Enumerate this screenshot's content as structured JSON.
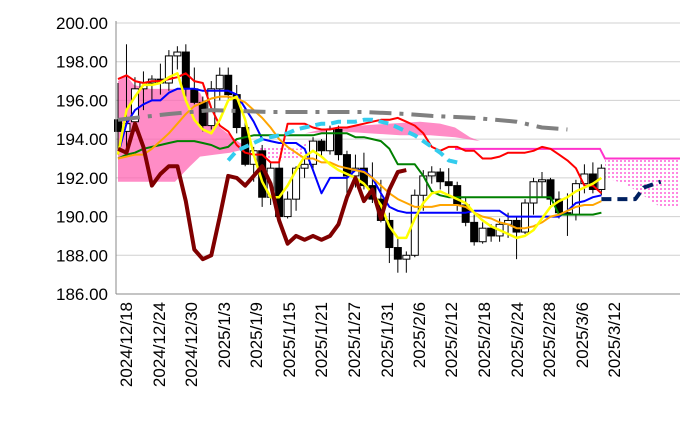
{
  "chart_data": {
    "type": "candlestick",
    "title": "",
    "xlabel": "",
    "ylabel": "",
    "ylim": [
      186.0,
      200.0
    ],
    "y_ticks": [
      "186.00",
      "188.00",
      "190.00",
      "192.00",
      "194.00",
      "196.00",
      "198.00",
      "200.00"
    ],
    "x_tick_labels": [
      "2024/12/18",
      "2024/12/24",
      "2024/12/30",
      "2025/1/3",
      "2025/1/9",
      "2025/1/15",
      "2025/1/21",
      "2025/1/27",
      "2025/1/31",
      "2025/2/6",
      "2025/2/12",
      "2025/2/18",
      "2025/2/24",
      "2025/2/28",
      "2025/3/6",
      "2025/3/12"
    ],
    "grid": "horizontal",
    "candles_ohlc": [
      [
        195.0,
        196.9,
        193.3,
        194.4
      ],
      [
        194.4,
        198.9,
        193.5,
        194.8
      ],
      [
        194.9,
        197.2,
        194.4,
        196.6
      ],
      [
        196.6,
        197.5,
        195.5,
        196.9
      ],
      [
        196.9,
        197.3,
        196.0,
        197.1
      ],
      [
        197.1,
        197.9,
        196.3,
        196.9
      ],
      [
        196.9,
        198.6,
        196.5,
        198.3
      ],
      [
        198.3,
        198.8,
        197.6,
        198.5
      ],
      [
        198.5,
        198.9,
        196.2,
        196.6
      ],
      [
        196.6,
        197.7,
        195.8,
        195.9
      ],
      [
        195.9,
        196.2,
        194.4,
        194.7
      ],
      [
        194.7,
        197.0,
        194.5,
        196.6
      ],
      [
        196.6,
        197.7,
        196.0,
        197.3
      ],
      [
        197.3,
        197.7,
        196.1,
        196.3
      ],
      [
        196.3,
        196.8,
        194.3,
        194.6
      ],
      [
        194.6,
        195.1,
        192.6,
        192.7
      ],
      [
        192.7,
        193.6,
        191.8,
        193.4
      ],
      [
        193.4,
        193.7,
        190.5,
        191.0
      ],
      [
        191.0,
        192.8,
        190.6,
        192.5
      ],
      [
        192.5,
        193.0,
        189.7,
        190.0
      ],
      [
        190.0,
        191.3,
        189.9,
        190.9
      ],
      [
        190.9,
        192.6,
        190.3,
        192.5
      ],
      [
        192.5,
        193.1,
        192.0,
        192.7
      ],
      [
        192.7,
        194.1,
        192.4,
        193.9
      ],
      [
        193.9,
        194.0,
        193.1,
        193.4
      ],
      [
        193.4,
        194.7,
        193.2,
        194.5
      ],
      [
        194.5,
        194.7,
        192.9,
        193.2
      ],
      [
        193.2,
        193.4,
        191.2,
        192.1
      ],
      [
        192.1,
        193.2,
        191.5,
        192.5
      ],
      [
        192.5,
        193.3,
        191.4,
        191.6
      ],
      [
        191.6,
        192.8,
        190.7,
        190.9
      ],
      [
        190.9,
        191.9,
        189.7,
        189.8
      ],
      [
        189.8,
        190.2,
        187.6,
        188.4
      ],
      [
        188.4,
        188.9,
        187.1,
        187.8
      ],
      [
        187.8,
        188.2,
        187.1,
        188.0
      ],
      [
        188.0,
        191.4,
        187.9,
        191.1
      ],
      [
        191.1,
        192.4,
        190.3,
        192.1
      ],
      [
        192.1,
        192.6,
        191.7,
        192.3
      ],
      [
        192.3,
        192.5,
        191.4,
        191.8
      ],
      [
        191.8,
        192.5,
        191.1,
        191.6
      ],
      [
        191.6,
        191.8,
        190.3,
        190.6
      ],
      [
        190.6,
        191.0,
        189.5,
        189.7
      ],
      [
        189.7,
        190.1,
        188.5,
        188.7
      ],
      [
        188.7,
        189.7,
        188.6,
        189.4
      ],
      [
        189.4,
        189.6,
        188.7,
        189.0
      ],
      [
        189.0,
        189.9,
        188.7,
        189.6
      ],
      [
        189.6,
        190.2,
        188.9,
        189.8
      ],
      [
        189.8,
        190.0,
        187.8,
        189.2
      ],
      [
        189.2,
        190.9,
        189.1,
        190.7
      ],
      [
        190.7,
        192.0,
        190.1,
        191.8
      ],
      [
        191.8,
        192.3,
        191.0,
        191.9
      ],
      [
        191.9,
        192.0,
        190.6,
        190.9
      ],
      [
        190.9,
        191.3,
        189.9,
        190.2
      ],
      [
        190.2,
        191.2,
        189.0,
        190.1
      ],
      [
        190.1,
        191.9,
        189.8,
        191.7
      ],
      [
        191.7,
        192.7,
        191.2,
        192.2
      ],
      [
        192.2,
        192.8,
        191.2,
        191.4
      ],
      [
        191.4,
        192.7,
        191.1,
        192.5
      ]
    ],
    "series": [
      {
        "color": "#0000ff",
        "values": [
          193.2,
          194.8,
          195.5,
          195.8,
          196.0,
          196.0,
          196.4,
          196.6,
          196.6,
          196.6,
          196.5,
          196.5,
          196.5,
          196.5,
          196.3,
          195.6,
          194.9,
          194.0,
          193.9,
          193.8,
          193.8,
          193.8,
          193.5,
          192.4,
          191.2,
          192.0,
          192.0,
          192.0,
          192.4,
          192.4,
          192.0,
          191.2,
          190.5,
          190.3,
          190.2,
          190.2,
          190.2,
          190.2,
          190.2,
          190.2,
          190.2,
          190.2,
          190.3,
          190.3,
          190.3,
          190.3,
          190.0,
          190.0,
          190.0,
          190.0,
          190.0,
          190.0,
          190.0,
          190.3,
          190.7,
          190.8,
          191.0,
          191.1
        ]
      },
      {
        "color": "#008000",
        "values": [
          193.0,
          193.2,
          193.3,
          193.5,
          193.6,
          193.7,
          193.8,
          193.9,
          193.9,
          193.9,
          193.8,
          193.7,
          193.5,
          193.6,
          194.0,
          194.1,
          194.2,
          194.2,
          194.2,
          194.2,
          194.2,
          194.2,
          194.2,
          194.2,
          194.3,
          194.3,
          194.3,
          194.3,
          194.1,
          194.1,
          194.0,
          193.9,
          193.5,
          192.7,
          192.7,
          192.7,
          192.1,
          191.3,
          191.1,
          191.0,
          191.0,
          191.0,
          191.0,
          191.0,
          191.0,
          191.0,
          191.0,
          191.0,
          191.0,
          191.0,
          191.0,
          191.0,
          190.1,
          190.1,
          190.1,
          190.1,
          190.1,
          190.2
        ]
      },
      {
        "color": "#ff0000",
        "values": [
          197.1,
          197.3,
          197.0,
          196.9,
          197.0,
          197.0,
          197.1,
          197.2,
          197.4,
          197.0,
          196.9,
          195.6,
          194.7,
          194.4,
          193.7,
          193.3,
          193.2,
          193.2,
          192.8,
          192.8,
          194.8,
          194.8,
          194.8,
          194.6,
          194.5,
          194.5,
          194.6,
          194.6,
          194.7,
          194.8,
          194.9,
          195.0,
          195.0,
          195.1,
          194.9,
          194.7,
          194.3,
          193.6,
          193.4,
          193.6,
          193.6,
          193.4,
          193.4,
          193.0,
          193.0,
          193.1,
          193.3,
          193.3,
          193.3,
          193.4,
          193.6,
          193.5,
          193.2,
          192.9,
          192.5,
          191.6,
          191.6,
          191.2
        ]
      },
      {
        "color": "#ffa500",
        "values": [
          193.0,
          193.1,
          193.2,
          193.2,
          193.5,
          193.9,
          194.3,
          194.8,
          195.3,
          195.7,
          195.9,
          196.1,
          196.2,
          196.2,
          196.1,
          195.9,
          195.5,
          195.1,
          194.6,
          194.0,
          193.6,
          193.3,
          193.0,
          193.0,
          192.8,
          192.8,
          192.6,
          192.5,
          192.4,
          192.3,
          192.0,
          191.6,
          191.2,
          190.9,
          190.7,
          190.5,
          190.5,
          190.5,
          190.6,
          190.6,
          190.6,
          190.5,
          190.2,
          190.0,
          189.9,
          189.7,
          189.6,
          189.4,
          189.4,
          189.5,
          189.7,
          190.0,
          190.1,
          190.3,
          190.5,
          190.6,
          190.6,
          190.8
        ]
      },
      {
        "color": "#ffff00",
        "values": [
          193.2,
          195.5,
          196.2,
          196.8,
          196.8,
          196.9,
          197.2,
          197.4,
          196.0,
          195.0,
          194.5,
          194.3,
          195.0,
          196.0,
          196.2,
          195.0,
          193.2,
          191.8,
          191.0,
          191.0,
          191.6,
          192.4,
          193.1,
          193.4,
          193.1,
          192.7,
          192.4,
          192.2,
          192.0,
          191.7,
          191.2,
          190.6,
          189.5,
          188.9,
          188.9,
          189.9,
          190.7,
          191.2,
          191.3,
          191.1,
          190.9,
          190.7,
          190.2,
          189.8,
          189.5,
          189.3,
          189.1,
          188.9,
          189.0,
          189.3,
          189.9,
          190.5,
          190.8,
          191.0,
          191.3,
          191.5,
          191.7,
          192.0
        ]
      },
      {
        "color": "#800000",
        "values": [
          193.5,
          193.3,
          194.8,
          193.6,
          191.6,
          192.2,
          192.6,
          192.6,
          190.8,
          188.3,
          187.8,
          188.0,
          190.0,
          192.1,
          192.0,
          191.6,
          192.1,
          192.6,
          191.7,
          189.8,
          188.6,
          189.0,
          188.8,
          189.0,
          188.8,
          189.0,
          189.6,
          191.0,
          192.0,
          190.8,
          191.4,
          189.9,
          191.4,
          192.3,
          192.4,
          null,
          null,
          null,
          null,
          null,
          null,
          null,
          null,
          null,
          null,
          null,
          null,
          null,
          null,
          null,
          null,
          null,
          null,
          null,
          null,
          null,
          null,
          null
        ]
      },
      {
        "color": "#808080",
        "values": [
          195.0,
          null,
          null,
          null,
          null,
          null,
          195.3,
          null,
          null,
          null,
          null,
          195.5,
          null,
          null,
          null,
          null,
          null,
          null,
          195.4,
          null,
          null,
          null,
          null,
          195.4,
          null,
          null,
          null,
          null,
          null,
          195.4,
          null,
          null,
          null,
          null,
          195.3,
          null,
          null,
          195.2,
          null,
          null,
          null,
          null,
          195.1,
          null,
          null,
          null,
          null,
          194.9,
          null,
          null,
          194.6,
          null,
          null,
          194.5,
          null,
          null,
          null,
          null
        ]
      },
      {
        "color": "#33ccee",
        "values": [
          192.9,
          193.4,
          193.6,
          193.8,
          194.0,
          194.1,
          194.2,
          194.3,
          194.5,
          194.6,
          194.7,
          194.8,
          194.8,
          194.9,
          194.9,
          194.9,
          195.0,
          195.0,
          194.9,
          194.8,
          194.6,
          194.4,
          194.2,
          193.9,
          193.6,
          193.3,
          192.9,
          192.8
        ]
      },
      {
        "color": "#002060",
        "values": [
          190.9,
          191.8
        ]
      }
    ]
  }
}
